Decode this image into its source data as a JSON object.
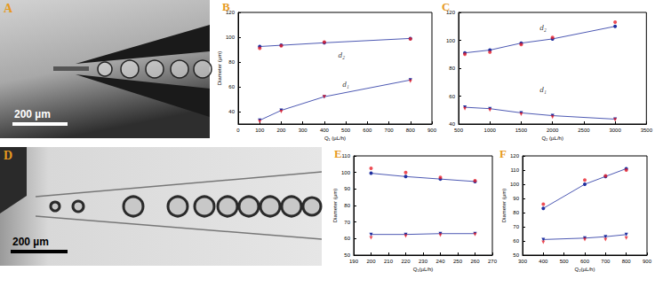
{
  "images": [
    {
      "panel": "A",
      "scale_bar": "200 µm"
    },
    {
      "panel": "D",
      "scale_bar": "200 µm"
    }
  ],
  "chart_data": [
    {
      "panel": "B",
      "type": "scatter",
      "x_label": "Q₁ (µL/h)",
      "y_label": "Diameter (µm)",
      "x": [
        100,
        200,
        400,
        800
      ],
      "xlim": [
        0,
        900
      ],
      "xticks": [
        0,
        100,
        200,
        300,
        400,
        500,
        600,
        700,
        800,
        900
      ],
      "ylim": [
        30,
        120
      ],
      "yticks": [
        40,
        60,
        80,
        100,
        120
      ],
      "grid": false,
      "series": [
        {
          "type": "scatter",
          "color": "#e8202a",
          "marker": "circle",
          "line_style": "none",
          "values": [
            91,
            93,
            96,
            98.5
          ]
        },
        {
          "type": "line",
          "color": "#1f2f9f",
          "marker": "circle",
          "line_style": "solid",
          "values": [
            92.5,
            93.5,
            95.5,
            99
          ]
        },
        {
          "type": "scatter",
          "color": "#e8202a",
          "marker": "triangle_down",
          "line_style": "none",
          "values": [
            32,
            40,
            52,
            64.5
          ]
        },
        {
          "type": "line",
          "color": "#1f2f9f",
          "marker": "triangle_down",
          "line_style": "solid",
          "values": [
            33,
            41,
            52,
            65.5
          ]
        }
      ],
      "annotations": [
        {
          "text": "d₂",
          "x": 480,
          "y": 86
        },
        {
          "text": "d₁",
          "x": 500,
          "y": 62
        }
      ]
    },
    {
      "panel": "C",
      "type": "scatter",
      "x_label": "Q₂ (µL/h)",
      "x": [
        600,
        1000,
        1500,
        2000,
        3000
      ],
      "xlim": [
        500,
        3500
      ],
      "xticks": [
        500,
        1000,
        1500,
        2000,
        2500,
        3000,
        3500
      ],
      "ylim": [
        40,
        120
      ],
      "yticks": [
        40,
        60,
        80,
        100,
        120
      ],
      "grid": false,
      "series": [
        {
          "type": "scatter",
          "color": "#e8202a",
          "marker": "circle",
          "line_style": "none",
          "values": [
            90,
            91.5,
            97,
            102,
            113
          ]
        },
        {
          "type": "line",
          "color": "#1f2f9f",
          "marker": "circle",
          "line_style": "solid",
          "values": [
            91,
            93,
            98,
            101,
            110
          ]
        },
        {
          "type": "scatter",
          "color": "#e8202a",
          "marker": "triangle_down",
          "line_style": "none",
          "values": [
            51,
            50,
            47,
            45,
            43
          ]
        },
        {
          "type": "line",
          "color": "#1f2f9f",
          "marker": "triangle_down",
          "line_style": "solid",
          "values": [
            52,
            51,
            48,
            46,
            43.5
          ]
        }
      ],
      "annotations": [
        {
          "text": "d₂",
          "x": 1850,
          "y": 109
        },
        {
          "text": "d₁",
          "x": 1850,
          "y": 65
        }
      ]
    },
    {
      "panel": "E",
      "type": "scatter",
      "x_label": "Q₁(µL/h)",
      "y_label": "Diameter (µm)",
      "x": [
        200,
        220,
        240,
        260
      ],
      "xlim": [
        190,
        270
      ],
      "xticks": [
        190,
        200,
        210,
        220,
        230,
        240,
        250,
        260,
        270
      ],
      "ylim": [
        50,
        110
      ],
      "yticks": [
        50,
        60,
        70,
        80,
        90,
        100,
        110
      ],
      "grid": false,
      "series": [
        {
          "type": "scatter",
          "color": "#e8202a",
          "marker": "circle",
          "line_style": "none",
          "values": [
            102.5,
            100,
            97,
            95
          ]
        },
        {
          "type": "line",
          "color": "#1f2f9f",
          "marker": "circle",
          "line_style": "solid",
          "values": [
            99.5,
            97.5,
            96,
            94.5
          ]
        },
        {
          "type": "scatter",
          "color": "#e8202a",
          "marker": "triangle_down",
          "line_style": "none",
          "values": [
            60.5,
            61.5,
            62,
            62.5
          ]
        },
        {
          "type": "line",
          "color": "#1f2f9f",
          "marker": "triangle_down",
          "line_style": "solid",
          "values": [
            62.5,
            62.5,
            63,
            63
          ]
        }
      ]
    },
    {
      "panel": "F",
      "type": "scatter",
      "x_label": "Q₂(µL/h)",
      "y_label": "Diameter (µm)",
      "x": [
        400,
        600,
        700,
        800
      ],
      "xlim": [
        300,
        900
      ],
      "xticks": [
        300,
        400,
        500,
        600,
        700,
        800,
        900
      ],
      "ylim": [
        50,
        120
      ],
      "yticks": [
        50,
        60,
        70,
        80,
        90,
        100,
        110,
        120
      ],
      "grid": false,
      "series": [
        {
          "type": "scatter",
          "color": "#e8202a",
          "marker": "circle",
          "line_style": "none",
          "values": [
            86,
            103,
            106,
            110
          ]
        },
        {
          "type": "line",
          "color": "#1f2f9f",
          "marker": "circle",
          "line_style": "solid",
          "values": [
            83,
            100,
            105.5,
            111
          ]
        },
        {
          "type": "scatter",
          "color": "#e8202a",
          "marker": "triangle_down",
          "line_style": "none",
          "values": [
            59,
            61,
            61,
            62
          ]
        },
        {
          "type": "line",
          "color": "#1f2f9f",
          "marker": "triangle_down",
          "line_style": "solid",
          "values": [
            61,
            62,
            63,
            64.5
          ]
        }
      ]
    }
  ]
}
